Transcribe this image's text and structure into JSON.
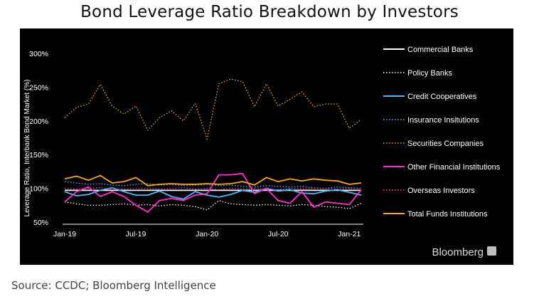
{
  "header": {
    "title": "Bond Leverage Ratio Breakdown by Investors"
  },
  "footer": {
    "source": "Source: CCDC; Bloomberg Intelligence",
    "brand": "Bloomberg"
  },
  "chart_data": {
    "type": "line",
    "ylabel": "Leverage Ratio, Interbank Bond Market (%)",
    "ylim": [
      50,
      300
    ],
    "yticks": [
      50,
      100,
      150,
      200,
      250,
      300
    ],
    "ytick_labels": [
      "50%",
      "100%",
      "150%",
      "200%",
      "250%",
      "300%"
    ],
    "x": [
      "Jan-19",
      "Feb-19",
      "Mar-19",
      "Apr-19",
      "May-19",
      "Jun-19",
      "Jul-19",
      "Aug-19",
      "Sep-19",
      "Oct-19",
      "Nov-19",
      "Dec-19",
      "Jan-20",
      "Feb-20",
      "Mar-20",
      "Apr-20",
      "May-20",
      "Jun-20",
      "Jul-20",
      "Aug-20",
      "Sep-20",
      "Oct-20",
      "Nov-20",
      "Dec-20",
      "Jan-21",
      "Feb-21"
    ],
    "xtick_labels": [
      "Jan-19",
      "Jul-19",
      "Jan-20",
      "Jul-20",
      "Jan-21"
    ],
    "colors": {
      "background": "#000000",
      "axis": "#ffffff"
    },
    "grid": false,
    "legend_position": "right",
    "series": [
      {
        "name": "Commercial Banks",
        "color": "#ffffff",
        "dash": "solid",
        "values": [
          97,
          97,
          97,
          97,
          97,
          97,
          97,
          97,
          97,
          97,
          97,
          97,
          97,
          97,
          97,
          97,
          97,
          97,
          97,
          97,
          97,
          97,
          97,
          97,
          97,
          97
        ]
      },
      {
        "name": "Policy Banks",
        "color": "#ffffff",
        "dash": "dotted",
        "values": [
          80,
          77,
          75,
          75,
          76,
          77,
          75,
          76,
          74,
          76,
          75,
          73,
          68,
          82,
          77,
          76,
          75,
          76,
          75,
          74,
          76,
          75,
          73,
          72,
          70,
          78
        ]
      },
      {
        "name": "Credit Cooperatives",
        "color": "#4db8ff",
        "dash": "solid",
        "values": [
          95,
          89,
          91,
          97,
          101,
          95,
          90,
          90,
          96,
          88,
          84,
          95,
          90,
          87,
          91,
          97,
          94,
          100,
          96,
          98,
          93,
          92,
          96,
          98,
          94,
          90
        ]
      },
      {
        "name": "Insurance Insitutions",
        "color": "#4db8ff",
        "dash": "dotted",
        "values": [
          110,
          108,
          106,
          107,
          105,
          104,
          106,
          107,
          105,
          106,
          104,
          105,
          106,
          104,
          105,
          103,
          102,
          104,
          103,
          102,
          103,
          101,
          100,
          102,
          101,
          100
        ]
      },
      {
        "name": "Securities Companies",
        "color": "#f5a623",
        "dash": "dotted",
        "values": [
          205,
          220,
          225,
          254,
          222,
          210,
          222,
          186,
          205,
          215,
          200,
          226,
          173,
          255,
          262,
          258,
          221,
          255,
          222,
          232,
          243,
          221,
          225,
          225,
          189,
          202
        ]
      },
      {
        "name": "Other Financial Institutions",
        "color": "#ff33cc",
        "dash": "solid",
        "values": [
          80,
          95,
          102,
          88,
          95,
          88,
          75,
          65,
          82,
          85,
          82,
          90,
          92,
          120,
          120,
          122,
          92,
          100,
          82,
          78,
          95,
          72,
          80,
          78,
          76,
          98
        ]
      },
      {
        "name": "Overseas Investors",
        "color": "#ff33cc",
        "dash": "dotted",
        "values": [
          100,
          99,
          100,
          101,
          98,
          99,
          100,
          100,
          99,
          100,
          101,
          99,
          100,
          98,
          100,
          99,
          100,
          99,
          98,
          100,
          99,
          100,
          100,
          99,
          100,
          100
        ]
      },
      {
        "name": "Total Funds Institutions",
        "color": "#f5a623",
        "dash": "solid",
        "values": [
          114,
          118,
          112,
          119,
          108,
          110,
          116,
          104,
          106,
          107,
          106,
          106,
          107,
          106,
          107,
          110,
          105,
          116,
          110,
          114,
          111,
          114,
          112,
          111,
          106,
          108
        ]
      }
    ]
  }
}
